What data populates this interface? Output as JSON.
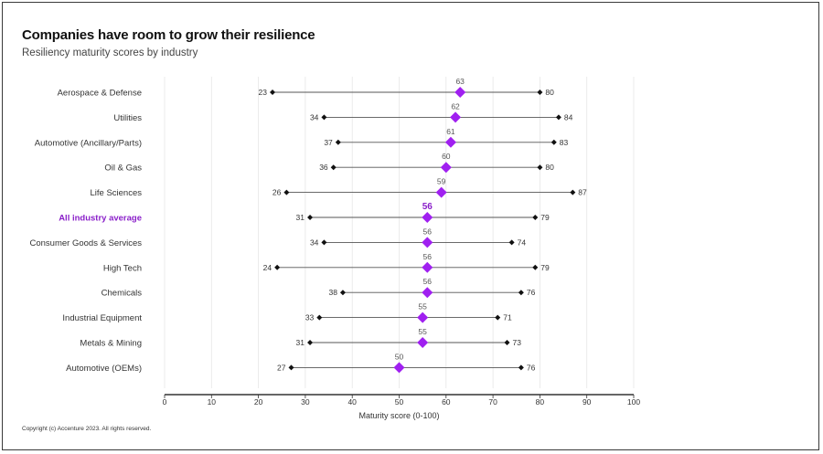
{
  "header": {
    "title": "Companies have room to grow their resilience",
    "subtitle": "Resiliency maturity scores by industry"
  },
  "footer": {
    "copyright": "Copyright (c) Accenture 2023. All rights reserved."
  },
  "colors": {
    "accent": "#a020f0",
    "highlight_text": "#8a1fc9",
    "range_line": "#555555",
    "marker": "#111111"
  },
  "chart_data": {
    "type": "range-dot",
    "title": "Companies have room to grow their resilience",
    "subtitle": "Resiliency maturity scores by industry",
    "xlabel": "Maturity score (0-100)",
    "xlim": [
      0,
      100
    ],
    "xticks": [
      0,
      10,
      20,
      30,
      40,
      50,
      60,
      70,
      80,
      90,
      100
    ],
    "highlight_category": "All industry average",
    "rows": [
      {
        "category": "Aerospace & Defense",
        "min": 23,
        "avg": 63,
        "max": 80
      },
      {
        "category": "Utilities",
        "min": 34,
        "avg": 62,
        "max": 84
      },
      {
        "category": "Automotive (Ancillary/Parts)",
        "min": 37,
        "avg": 61,
        "max": 83
      },
      {
        "category": "Oil & Gas",
        "min": 36,
        "avg": 60,
        "max": 80
      },
      {
        "category": "Life Sciences",
        "min": 26,
        "avg": 59,
        "max": 87
      },
      {
        "category": "All industry average",
        "min": 31,
        "avg": 56,
        "max": 79
      },
      {
        "category": "Consumer Goods & Services",
        "min": 34,
        "avg": 56,
        "max": 74
      },
      {
        "category": "High Tech",
        "min": 24,
        "avg": 56,
        "max": 79
      },
      {
        "category": "Chemicals",
        "min": 38,
        "avg": 56,
        "max": 76
      },
      {
        "category": "Industrial Equipment",
        "min": 33,
        "avg": 55,
        "max": 71
      },
      {
        "category": "Metals & Mining",
        "min": 31,
        "avg": 55,
        "max": 73
      },
      {
        "category": "Automotive (OEMs)",
        "min": 27,
        "avg": 50,
        "max": 76
      }
    ]
  }
}
